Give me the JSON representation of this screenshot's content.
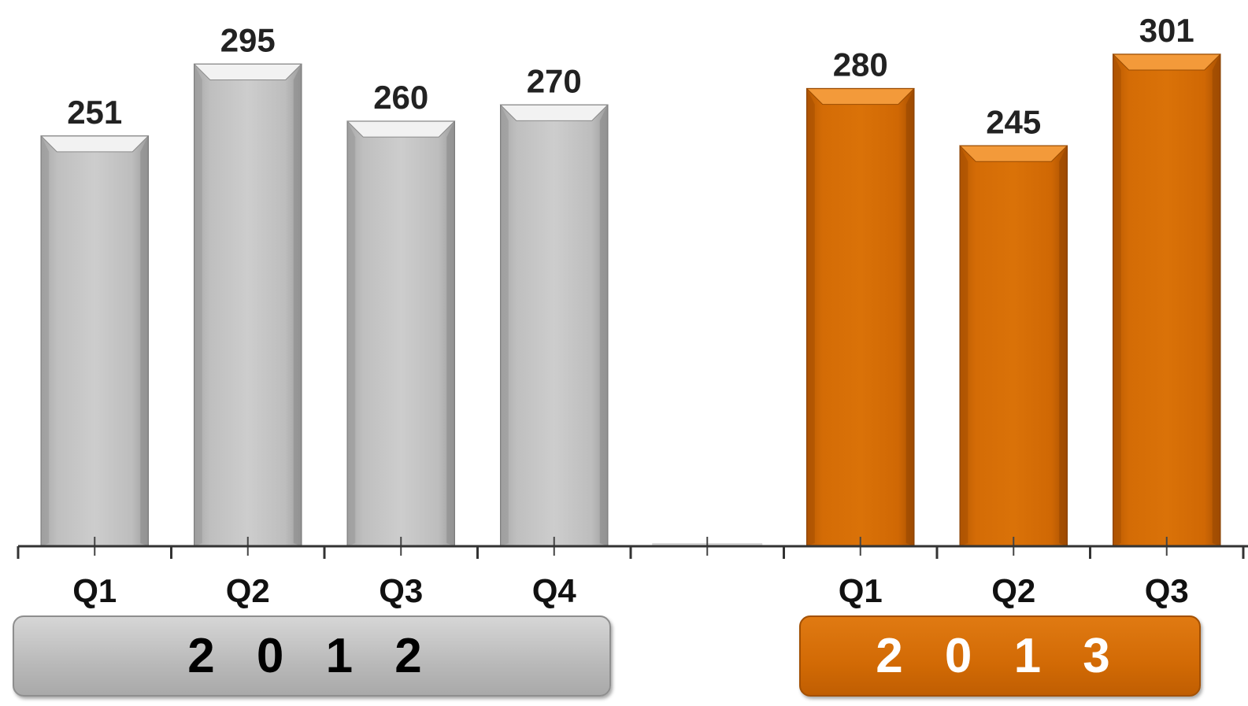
{
  "chart_data": {
    "type": "bar",
    "title": "",
    "xlabel": "",
    "ylabel": "",
    "ylim": [
      0,
      320
    ],
    "grid": false,
    "categories": [
      "Q1",
      "Q2",
      "Q3",
      "Q4",
      "",
      "Q1",
      "Q2",
      "Q3"
    ],
    "groups": [
      {
        "year": "2012",
        "categories": [
          "Q1",
          "Q2",
          "Q3",
          "Q4"
        ],
        "values": [
          251,
          295,
          260,
          270
        ],
        "color": "#c4c4c4"
      },
      {
        "year": "2013",
        "categories": [
          "Q1",
          "Q2",
          "Q3"
        ],
        "values": [
          280,
          245,
          301
        ],
        "color": "#d46c06"
      }
    ],
    "year_labels": {
      "2012": "2 0 1 2",
      "2013": "2 0 1 3"
    }
  }
}
